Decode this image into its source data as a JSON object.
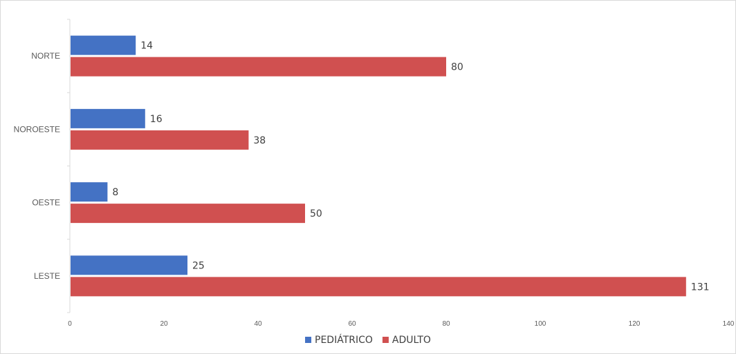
{
  "chart_data": {
    "type": "bar",
    "orientation": "horizontal",
    "categories": [
      "NORTE",
      "NOROESTE",
      "OESTE",
      "LESTE"
    ],
    "series": [
      {
        "name": "PEDIÁTRICO",
        "values": [
          14,
          16,
          8,
          25
        ],
        "color": "#4472C4"
      },
      {
        "name": "ADULTO",
        "values": [
          80,
          38,
          50,
          131
        ],
        "color": "#D05050"
      }
    ],
    "xlim": [
      0,
      140
    ],
    "x_ticks": [
      0,
      20,
      40,
      60,
      80,
      100,
      120,
      140
    ],
    "grid": false,
    "legend_position": "bottom",
    "data_labels": true
  }
}
